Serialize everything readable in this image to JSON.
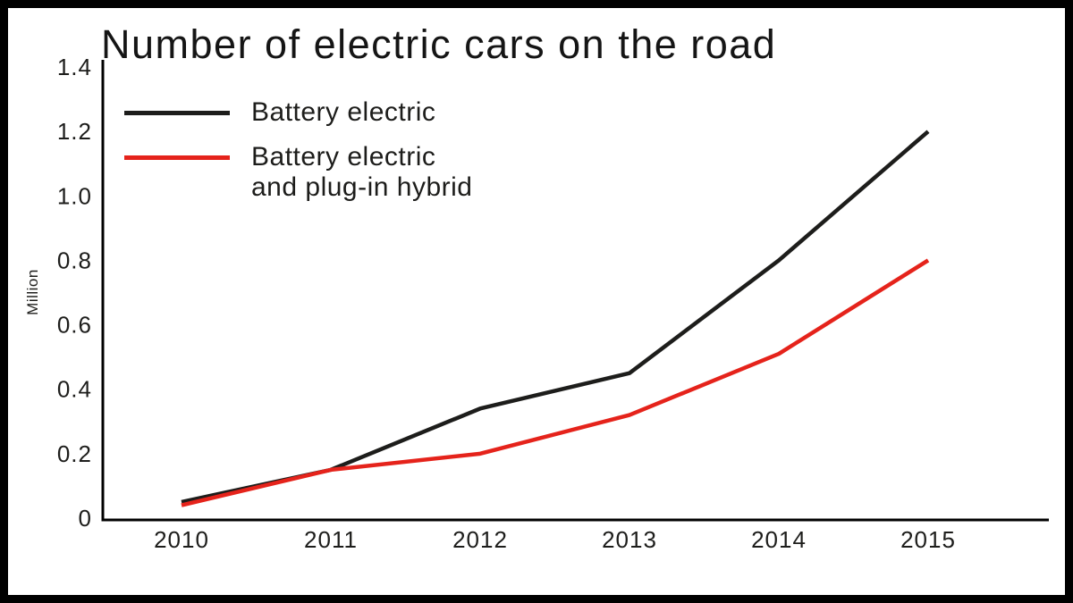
{
  "chart_data": {
    "type": "line",
    "title": "Number of electric cars on the road",
    "xlabel": "",
    "ylabel": "Million",
    "categories": [
      "2010",
      "2011",
      "2012",
      "2013",
      "2014",
      "2015"
    ],
    "y_tick_labels": [
      "0",
      "0.2",
      "0.4",
      "0.6",
      "0.8",
      "1.0",
      "1.2",
      "1.4"
    ],
    "ylim": [
      0,
      1.4
    ],
    "grid": false,
    "legend_position": "top-left",
    "axis_color": "#000000",
    "series": [
      {
        "name": "Battery electric",
        "color": "#1d1d1b",
        "values": [
          0.05,
          0.15,
          0.34,
          0.45,
          0.8,
          1.2
        ],
        "legend_lines": [
          "Battery electric"
        ]
      },
      {
        "name": "Battery electric and plug-in hybrid",
        "color": "#e5231b",
        "values": [
          0.04,
          0.15,
          0.2,
          0.32,
          0.51,
          0.8
        ],
        "legend_lines": [
          "Battery electric",
          "and plug-in hybrid"
        ]
      }
    ]
  }
}
